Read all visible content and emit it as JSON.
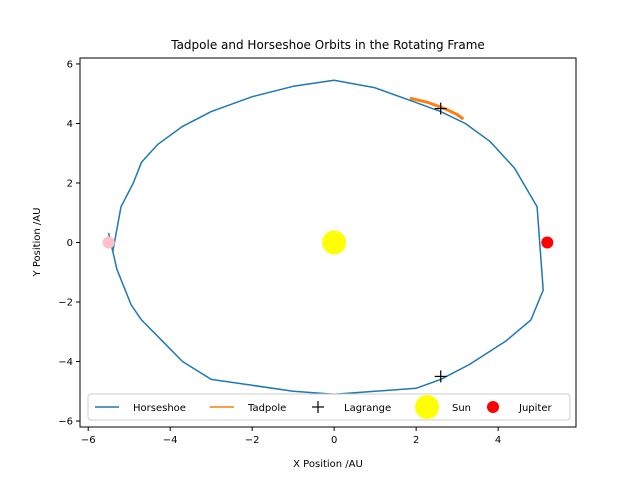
{
  "chart_data": {
    "type": "line",
    "title": "Tadpole and Horseshoe Orbits in the Rotating Frame",
    "xlabel": "X Position /AU",
    "ylabel": "Y Position /AU",
    "xlim": [
      -6.2,
      5.9
    ],
    "ylim": [
      -6.2,
      6.2
    ],
    "xticks": [
      -6,
      -4,
      -2,
      0,
      2,
      4
    ],
    "yticks": [
      -6,
      -4,
      -2,
      0,
      2,
      4,
      6
    ],
    "grid": false,
    "legend_position": "bottom",
    "series": [
      {
        "name": "Horseshoe",
        "color": "#1f77b4",
        "marker": "line",
        "x": [
          -5.4,
          -5.2,
          -4.9,
          -4.7,
          -4.3,
          -3.7,
          -3.0,
          -2.0,
          -1.0,
          0.0,
          1.0,
          2.0,
          2.6,
          3.2,
          3.8,
          4.4,
          4.95,
          5.1,
          4.8,
          4.2,
          3.3,
          2.6,
          2.0,
          1.0,
          0.0,
          -1.0,
          -2.0,
          -3.0,
          -3.7,
          -4.2,
          -4.7,
          -4.95,
          -5.3,
          -5.5,
          -5.4
        ],
        "y": [
          -0.3,
          1.2,
          2.0,
          2.7,
          3.3,
          3.9,
          4.4,
          4.9,
          5.25,
          5.45,
          5.2,
          4.7,
          4.4,
          4.0,
          3.4,
          2.5,
          1.2,
          -1.6,
          -2.6,
          -3.3,
          -4.1,
          -4.6,
          -4.9,
          -5.0,
          -5.1,
          -5.0,
          -4.8,
          -4.6,
          -4.0,
          -3.3,
          -2.6,
          -2.1,
          -0.9,
          0.3,
          -0.3
        ]
      },
      {
        "name": "Tadpole",
        "color": "#ff7f0e",
        "marker": "line",
        "x": [
          1.85,
          2.3,
          2.7,
          3.0,
          3.15
        ],
        "y": [
          4.85,
          4.7,
          4.5,
          4.3,
          4.15
        ]
      },
      {
        "name": "Lagrange",
        "color": "#000000",
        "marker": "plus",
        "x": [
          2.6,
          2.6
        ],
        "y": [
          4.5,
          -4.5
        ]
      },
      {
        "name": "Sun",
        "color": "#ffff00",
        "marker": "circle-large",
        "x": [
          0
        ],
        "y": [
          0
        ]
      },
      {
        "name": "Jupiter",
        "color": "#ff0000",
        "marker": "circle",
        "x": [
          5.2
        ],
        "y": [
          0
        ]
      }
    ],
    "extra_markers": [
      {
        "color": "#ffc0cb",
        "x": -5.5,
        "y": 0
      }
    ]
  }
}
